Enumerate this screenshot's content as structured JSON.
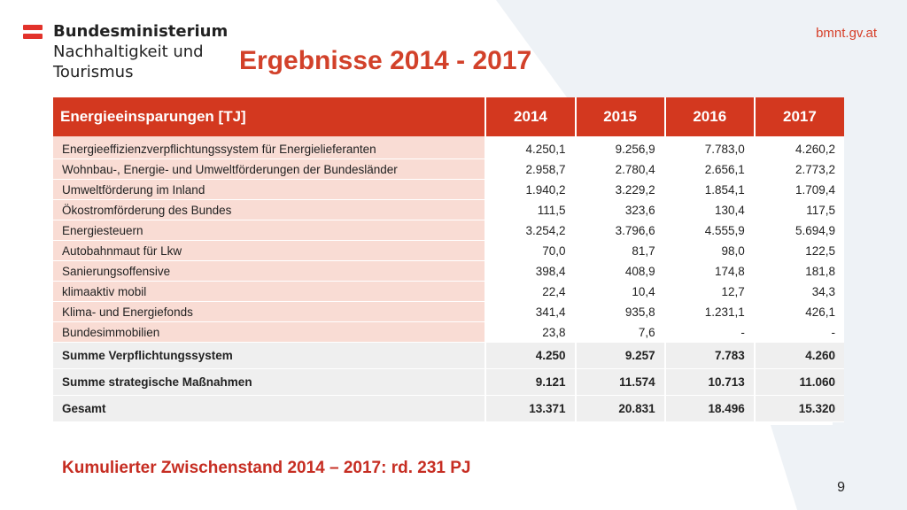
{
  "header": {
    "logo_line1": "Bundesministerium",
    "logo_line2": "Nachhaltigkeit und",
    "logo_line3": "Tourismus",
    "site_link": "bmnt.gv.at",
    "title": "Ergebnisse 2014 - 2017"
  },
  "table": {
    "header_label": "Energieeinsparungen [TJ]",
    "years": [
      "2014",
      "2015",
      "2016",
      "2017"
    ],
    "rows": [
      {
        "label": "Energieeffizienzverpflichtungssystem für Energielieferanten",
        "values": [
          "4.250,1",
          "9.256,9",
          "7.783,0",
          "4.260,2"
        ]
      },
      {
        "label": "Wohnbau-, Energie- und Umweltförderungen der Bundesländer",
        "values": [
          "2.958,7",
          "2.780,4",
          "2.656,1",
          "2.773,2"
        ]
      },
      {
        "label": "Umweltförderung im Inland",
        "values": [
          "1.940,2",
          "3.229,2",
          "1.854,1",
          "1.709,4"
        ]
      },
      {
        "label": "Ökostromförderung des Bundes",
        "values": [
          "111,5",
          "323,6",
          "130,4",
          "117,5"
        ]
      },
      {
        "label": "Energiesteuern",
        "values": [
          "3.254,2",
          "3.796,6",
          "4.555,9",
          "5.694,9"
        ]
      },
      {
        "label": "Autobahnmaut für Lkw",
        "values": [
          "70,0",
          "81,7",
          "98,0",
          "122,5"
        ]
      },
      {
        "label": "Sanierungsoffensive",
        "values": [
          "398,4",
          "408,9",
          "174,8",
          "181,8"
        ]
      },
      {
        "label": "klimaaktiv mobil",
        "values": [
          "22,4",
          "10,4",
          "12,7",
          "34,3"
        ]
      },
      {
        "label": "Klima- und Energiefonds",
        "values": [
          "341,4",
          "935,8",
          "1.231,1",
          "426,1"
        ]
      },
      {
        "label": "Bundesimmobilien",
        "values": [
          "23,8",
          "7,6",
          "-",
          "-"
        ]
      }
    ],
    "summary_rows": [
      {
        "label": "Summe Verpflichtungssystem",
        "values": [
          "4.250",
          "9.257",
          "7.783",
          "4.260"
        ]
      },
      {
        "label": "Summe strategische Maßnahmen",
        "values": [
          "9.121",
          "11.574",
          "10.713",
          "11.060"
        ]
      },
      {
        "label": "Gesamt",
        "values": [
          "13.371",
          "20.831",
          "18.496",
          "15.320"
        ]
      }
    ]
  },
  "conclusion": "Kumulierter Zwischenstand 2014 – 2017: rd. 231 PJ",
  "page_number": "9",
  "colors": {
    "accent": "#d3381f",
    "label_fill": "#f9dcd4",
    "summary_fill": "#efefef",
    "background_shape": "#eef2f6"
  }
}
